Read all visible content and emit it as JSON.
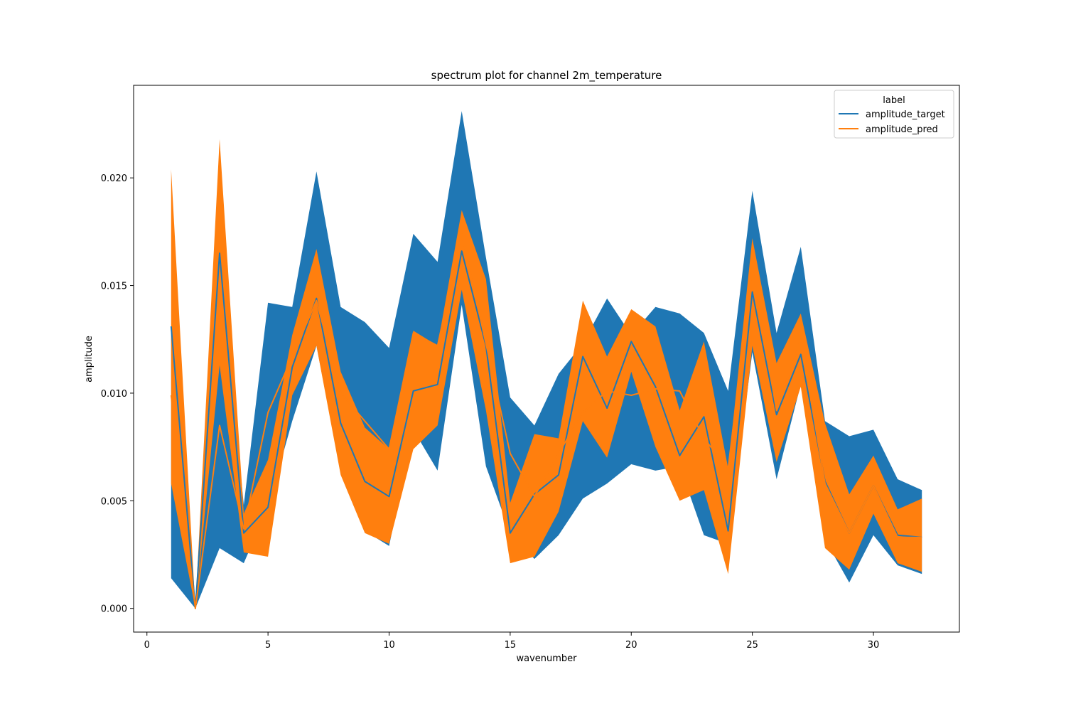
{
  "chart_data": {
    "type": "line",
    "title": "spectrum plot for channel 2m_temperature",
    "xlabel": "wavenumber",
    "ylabel": "amplitude",
    "xlim": [
      -0.55,
      33.55
    ],
    "ylim": [
      -0.0011,
      0.0243
    ],
    "xticks": [
      0,
      5,
      10,
      15,
      20,
      25,
      30
    ],
    "xtick_labels": [
      "0",
      "5",
      "10",
      "15",
      "20",
      "25",
      "30"
    ],
    "yticks": [
      0.0,
      0.005,
      0.01,
      0.015,
      0.02
    ],
    "ytick_labels": [
      "0.000",
      "0.005",
      "0.010",
      "0.015",
      "0.020"
    ],
    "legend": {
      "title": "label",
      "position": "top-right",
      "entries": [
        "amplitude_target",
        "amplitude_pred"
      ]
    },
    "x": [
      1,
      2,
      3,
      4,
      5,
      6,
      7,
      8,
      9,
      10,
      11,
      12,
      13,
      14,
      15,
      16,
      17,
      18,
      19,
      20,
      21,
      22,
      23,
      24,
      25,
      26,
      27,
      28,
      29,
      30,
      31,
      32
    ],
    "series": [
      {
        "name": "amplitude_target",
        "color": "#1f77b4",
        "values": [
          0.0131,
          0.0,
          0.0165,
          0.0035,
          0.0047,
          0.0112,
          0.0144,
          0.0086,
          0.0059,
          0.0052,
          0.0101,
          0.0104,
          0.0166,
          0.0122,
          0.0035,
          0.0053,
          0.0062,
          0.0117,
          0.0093,
          0.0124,
          0.0103,
          0.0071,
          0.0089,
          0.0036,
          0.0147,
          0.009,
          0.0118,
          0.0059,
          0.0035,
          0.0057,
          0.0034,
          0.0033
        ],
        "lower": [
          0.0014,
          0.0,
          0.0028,
          0.0021,
          0.0047,
          0.0087,
          0.0122,
          0.0064,
          0.0036,
          0.0029,
          0.0083,
          0.0064,
          0.0141,
          0.0066,
          0.0035,
          0.0023,
          0.0034,
          0.0051,
          0.0058,
          0.0067,
          0.0064,
          0.0066,
          0.0034,
          0.003,
          0.0119,
          0.006,
          0.0104,
          0.0032,
          0.0012,
          0.0034,
          0.002,
          0.0016
        ],
        "upper": [
          0.0131,
          0.0,
          0.0165,
          0.0048,
          0.0142,
          0.014,
          0.0203,
          0.014,
          0.0133,
          0.0121,
          0.0174,
          0.0161,
          0.0231,
          0.0163,
          0.0098,
          0.0085,
          0.0109,
          0.0123,
          0.0144,
          0.0127,
          0.014,
          0.0137,
          0.0128,
          0.0101,
          0.0194,
          0.0128,
          0.0168,
          0.0087,
          0.008,
          0.0083,
          0.006,
          0.0055
        ]
      },
      {
        "name": "amplitude_pred",
        "color": "#ff7f0e",
        "values": [
          0.0099,
          0.0,
          0.0085,
          0.0037,
          0.0091,
          0.0117,
          0.0143,
          0.01,
          0.0087,
          0.0074,
          0.0128,
          0.0122,
          0.0174,
          0.0123,
          0.0072,
          0.0052,
          0.0072,
          0.0091,
          0.0101,
          0.0099,
          0.0102,
          0.0101,
          0.0079,
          0.0065,
          0.0158,
          0.0092,
          0.0125,
          0.0058,
          0.0035,
          0.0057,
          0.0033,
          0.0033
        ],
        "lower": [
          0.0058,
          0.0,
          0.0113,
          0.0026,
          0.0024,
          0.0099,
          0.0122,
          0.0062,
          0.0035,
          0.003,
          0.0074,
          0.0085,
          0.0148,
          0.0092,
          0.0021,
          0.0024,
          0.0045,
          0.0087,
          0.007,
          0.011,
          0.0075,
          0.005,
          0.0055,
          0.0016,
          0.0122,
          0.0068,
          0.0103,
          0.0028,
          0.0018,
          0.0044,
          0.0021,
          0.0017
        ],
        "upper": [
          0.0204,
          0.0,
          0.0218,
          0.0044,
          0.0069,
          0.0127,
          0.0167,
          0.011,
          0.0084,
          0.0074,
          0.0129,
          0.0122,
          0.0185,
          0.0153,
          0.0049,
          0.0081,
          0.0079,
          0.0143,
          0.0117,
          0.0139,
          0.0131,
          0.0092,
          0.0124,
          0.0065,
          0.0172,
          0.0114,
          0.0137,
          0.0086,
          0.0053,
          0.0071,
          0.0046,
          0.0051
        ]
      }
    ]
  }
}
